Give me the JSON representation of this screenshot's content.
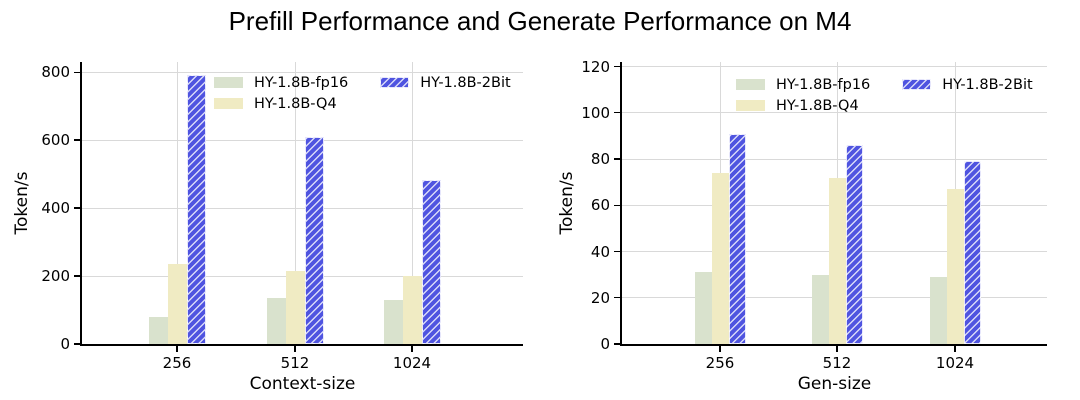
{
  "title": "Prefill Performance and Generate Performance on M4",
  "colors": {
    "fp16": "#d9e2cd",
    "q4": "#f0ebc3",
    "twobit": "#4f54e0",
    "hatch": "rgba(255,255,255,0.78)",
    "grid": "#d9d9d9",
    "axis": "#000000"
  },
  "legend": [
    "HY-1.8B-fp16",
    "HY-1.8B-Q4",
    "HY-1.8B-2Bit"
  ],
  "chart_data": [
    {
      "type": "bar",
      "title": "Prefill Performance and Generate Performance on M4",
      "xlabel": "Context-size",
      "ylabel": "Token/s",
      "categories": [
        "256",
        "512",
        "1024"
      ],
      "series": [
        {
          "name": "HY-1.8B-fp16",
          "values": [
            80,
            135,
            130
          ]
        },
        {
          "name": "HY-1.8B-Q4",
          "values": [
            235,
            215,
            200
          ]
        },
        {
          "name": "HY-1.8B-2Bit",
          "values": [
            793,
            610,
            483
          ]
        }
      ],
      "ylim": [
        0,
        830
      ],
      "yticks": [
        0,
        200,
        400,
        600,
        800
      ],
      "grid": true,
      "legend_position": "upper center",
      "legend_frame": false
    },
    {
      "type": "bar",
      "title": "Prefill Performance and Generate Performance on M4",
      "xlabel": "Gen-size",
      "ylabel": "Token/s",
      "categories": [
        "256",
        "512",
        "1024"
      ],
      "series": [
        {
          "name": "HY-1.8B-fp16",
          "values": [
            31,
            30,
            29
          ]
        },
        {
          "name": "HY-1.8B-Q4",
          "values": [
            74,
            72,
            67
          ]
        },
        {
          "name": "HY-1.8B-2Bit",
          "values": [
            91,
            86,
            79
          ]
        }
      ],
      "ylim": [
        0,
        122
      ],
      "yticks": [
        0,
        20,
        40,
        60,
        80,
        100,
        120
      ],
      "grid": true,
      "legend_position": "upper center",
      "legend_frame": false
    }
  ]
}
